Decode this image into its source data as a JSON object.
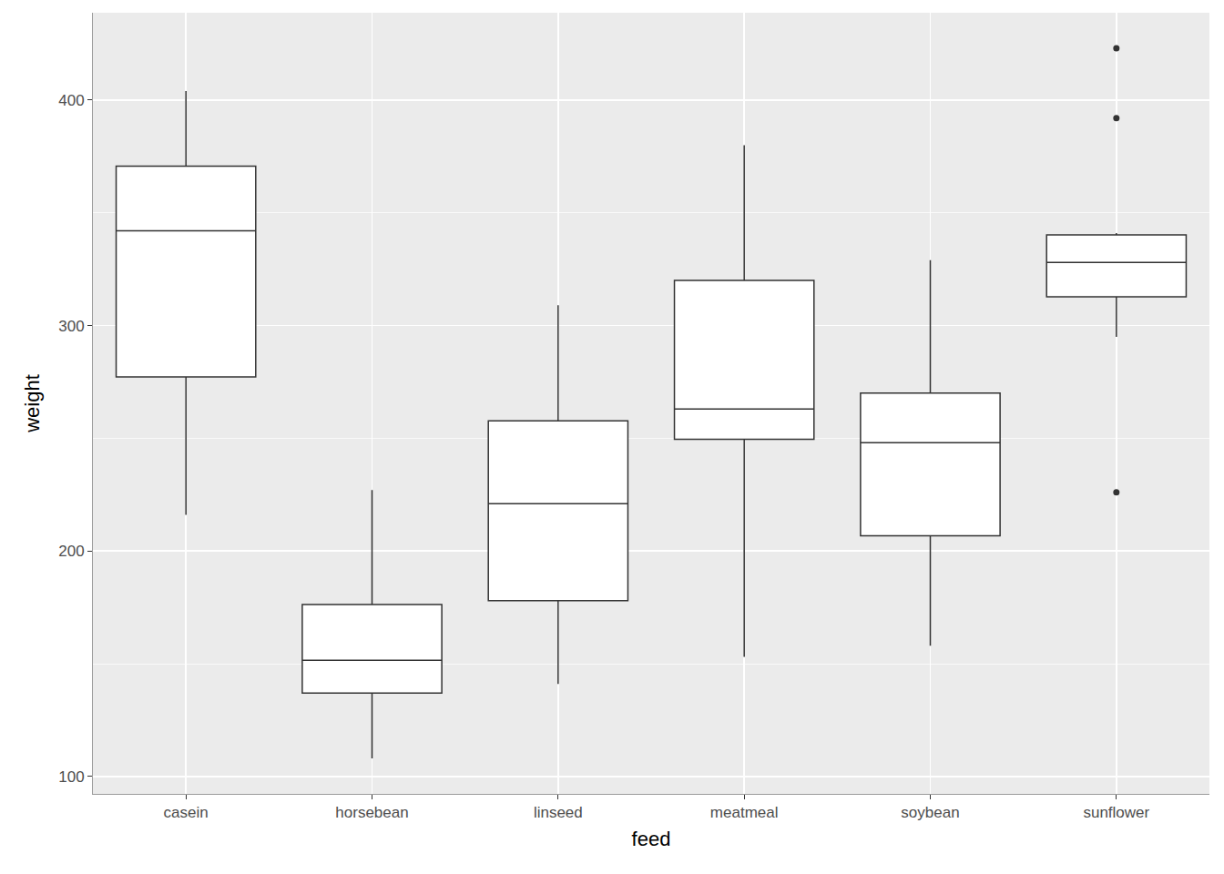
{
  "chart_data": {
    "type": "box",
    "x_label": "feed",
    "y_label": "weight",
    "categories": [
      "casein",
      "horsebean",
      "linseed",
      "meatmeal",
      "soybean",
      "sunflower"
    ],
    "boxes": [
      {
        "category": "casein",
        "lower_whisker": 216,
        "q1": 277.25,
        "median": 342,
        "q3": 370.75,
        "upper_whisker": 404,
        "outliers": []
      },
      {
        "category": "horsebean",
        "lower_whisker": 108,
        "q1": 137,
        "median": 151.5,
        "q3": 176.25,
        "upper_whisker": 227,
        "outliers": []
      },
      {
        "category": "linseed",
        "lower_whisker": 141,
        "q1": 178,
        "median": 221,
        "q3": 257.75,
        "upper_whisker": 309,
        "outliers": []
      },
      {
        "category": "meatmeal",
        "lower_whisker": 153,
        "q1": 249.5,
        "median": 263,
        "q3": 320,
        "upper_whisker": 380,
        "outliers": []
      },
      {
        "category": "soybean",
        "lower_whisker": 158,
        "q1": 206.75,
        "median": 248,
        "q3": 270,
        "upper_whisker": 329,
        "outliers": []
      },
      {
        "category": "sunflower",
        "lower_whisker": 295,
        "q1": 312.75,
        "median": 328,
        "q3": 340.25,
        "upper_whisker": 341,
        "outliers": [
          226,
          392,
          423
        ]
      }
    ],
    "color": "#ffffff",
    "ylim": [
      92.25,
      438.75
    ],
    "yticks": [
      100,
      200,
      300,
      400
    ],
    "grid": true
  }
}
